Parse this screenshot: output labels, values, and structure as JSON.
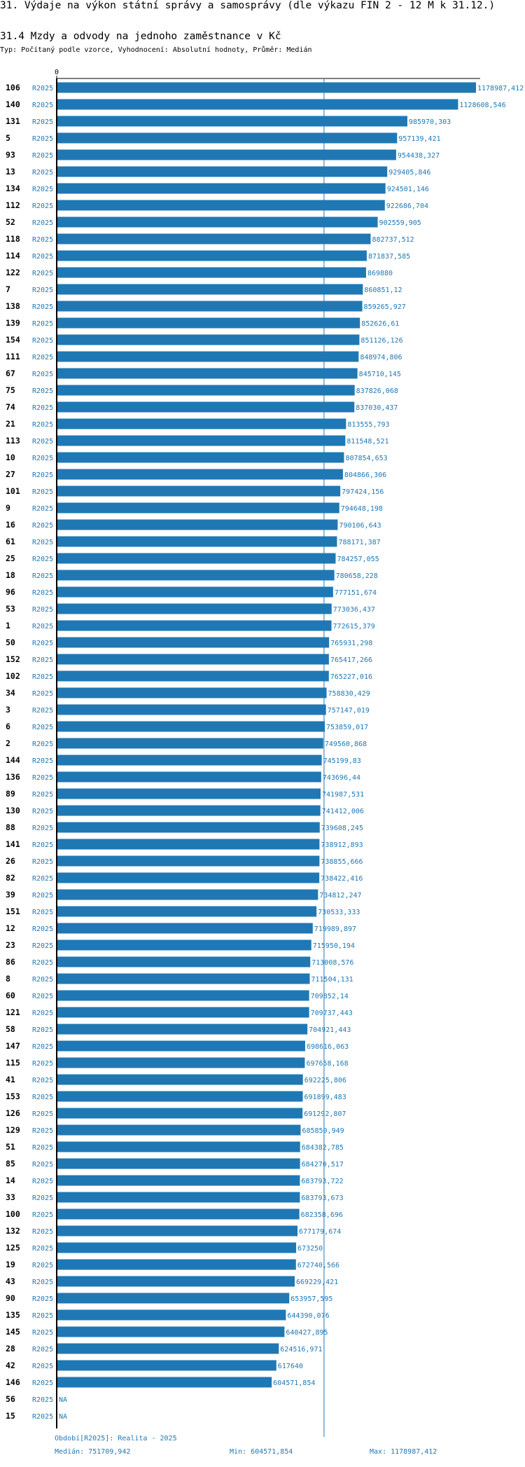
{
  "header": {
    "title": "31. Výdaje na výkon státní správy a samosprávy (dle výkazu FIN 2 - 12 M k 31.12.)",
    "subtitle": "31.4 Mzdy a odvody na jednoho zaměstnance v Kč",
    "type_line": "Typ: Počítaný podle vzorce, Vyhodnocení: Absolutní hodnoty, Průměr: Medián"
  },
  "colors": {
    "bar": "#1f78b4",
    "label": "#1f78b4",
    "axis": "#000000",
    "median_line": "#1f78b4"
  },
  "chart_data": {
    "type": "bar",
    "orientation": "horizontal",
    "title": "31.4 Mzdy a odvody na jednoho zaměstnance v Kč",
    "period": "R2025",
    "x_tick_labels": [
      "0"
    ],
    "xlim": [
      0,
      1178987.412
    ],
    "median": 751709.942,
    "categories": [
      "106",
      "140",
      "131",
      "5",
      "93",
      "13",
      "134",
      "112",
      "52",
      "118",
      "114",
      "122",
      "7",
      "138",
      "139",
      "154",
      "111",
      "67",
      "75",
      "74",
      "21",
      "113",
      "10",
      "27",
      "101",
      "9",
      "16",
      "61",
      "25",
      "18",
      "96",
      "53",
      "1",
      "50",
      "152",
      "102",
      "34",
      "3",
      "6",
      "2",
      "144",
      "136",
      "89",
      "130",
      "88",
      "141",
      "26",
      "82",
      "39",
      "151",
      "12",
      "23",
      "86",
      "8",
      "60",
      "121",
      "58",
      "147",
      "115",
      "41",
      "153",
      "126",
      "129",
      "51",
      "85",
      "14",
      "33",
      "100",
      "132",
      "125",
      "19",
      "43",
      "90",
      "135",
      "145",
      "28",
      "42",
      "146",
      "56",
      "15"
    ],
    "values": [
      1178987.412,
      1128608.546,
      985970.303,
      957139.421,
      954438.327,
      929405.846,
      924501.146,
      922686.704,
      902559.905,
      882737.512,
      871837.585,
      869880,
      860851.12,
      859265.927,
      852626.61,
      851126.126,
      848974.806,
      845710.145,
      837826.068,
      837030.437,
      813555.793,
      811548.521,
      807854.653,
      804866.306,
      797424.156,
      794648.198,
      790106.643,
      788171.387,
      784257.055,
      780658.228,
      777151.674,
      773036.437,
      772615.379,
      765931.298,
      765417.266,
      765227.016,
      758830.429,
      757147.019,
      753859.017,
      749560.868,
      745199.83,
      743696.44,
      741987.531,
      741412.006,
      739608.245,
      738912.893,
      738855.666,
      738422.416,
      734812.247,
      730533.333,
      719989.897,
      715950.194,
      713008.576,
      711504.131,
      709852.14,
      709737.443,
      704921.443,
      698616.063,
      697658.168,
      692225.806,
      691899.483,
      691292.807,
      685850.949,
      684382.785,
      684270.517,
      683793.722,
      683793.673,
      682358.696,
      677179.674,
      673250,
      672740.566,
      669229.421,
      653957.595,
      644390.076,
      640427.895,
      624516.971,
      617640,
      604571.854,
      null,
      null
    ],
    "value_labels": [
      "1178987,412",
      "1128608,546",
      "985970,303",
      "957139,421",
      "954438,327",
      "929405,846",
      "924501,146",
      "922686,704",
      "902559,905",
      "882737,512",
      "871837,585",
      "869880",
      "860851,12",
      "859265,927",
      "852626,61",
      "851126,126",
      "848974,806",
      "845710,145",
      "837826,068",
      "837030,437",
      "813555,793",
      "811548,521",
      "807854,653",
      "804866,306",
      "797424,156",
      "794648,198",
      "790106,643",
      "788171,387",
      "784257,055",
      "780658,228",
      "777151,674",
      "773036,437",
      "772615,379",
      "765931,298",
      "765417,266",
      "765227,016",
      "758830,429",
      "757147,019",
      "753859,017",
      "749560,868",
      "745199,83",
      "743696,44",
      "741987,531",
      "741412,006",
      "739608,245",
      "738912,893",
      "738855,666",
      "738422,416",
      "734812,247",
      "730533,333",
      "719989,897",
      "715950,194",
      "713008,576",
      "711504,131",
      "709852,14",
      "709737,443",
      "704921,443",
      "698616,063",
      "697658,168",
      "692225,806",
      "691899,483",
      "691292,807",
      "685850,949",
      "684382,785",
      "684270,517",
      "683793,722",
      "683793,673",
      "682358,696",
      "677179,674",
      "673250",
      "672740,566",
      "669229,421",
      "653957,595",
      "644390,076",
      "640427,895",
      "624516,971",
      "617640",
      "604571,854",
      "NA",
      "NA"
    ]
  },
  "footer": {
    "period_note": "Období[R2025]: Realita - 2025",
    "median_text": "Medián: 751709,942",
    "min_text": "Min: 604571,854",
    "max_text": "Max: 1178987,412"
  }
}
